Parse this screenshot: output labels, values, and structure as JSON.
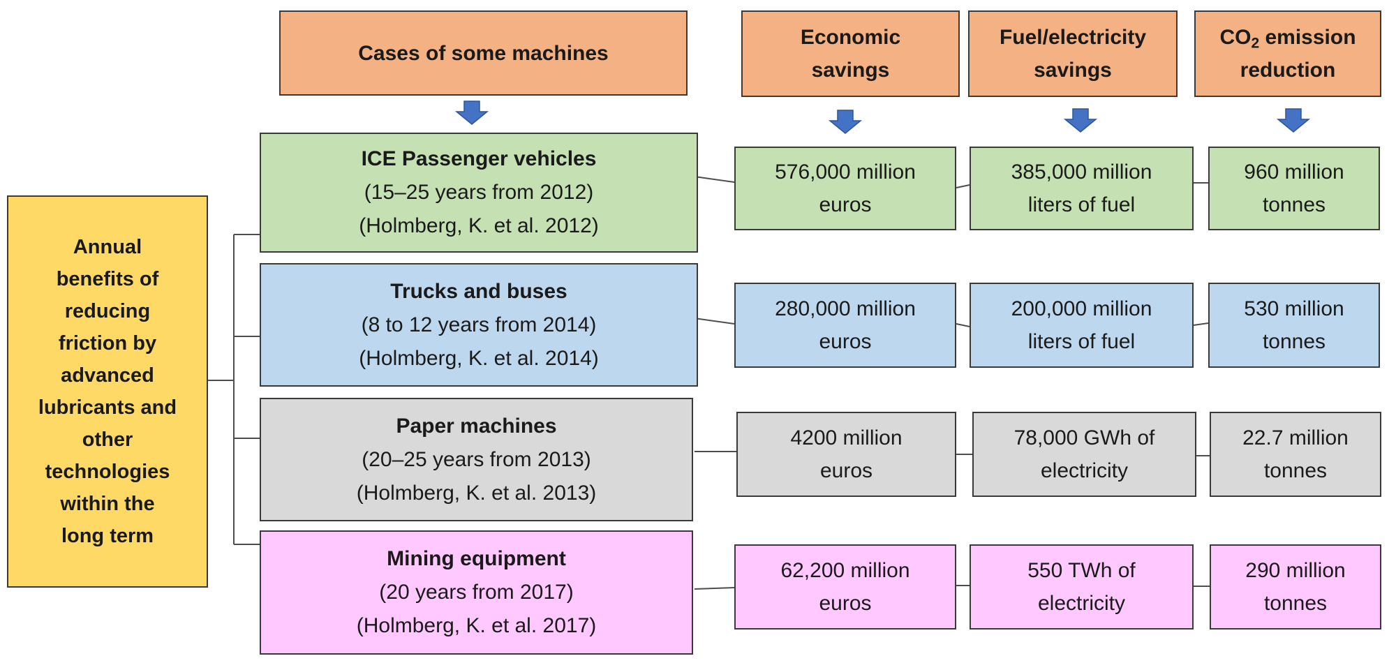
{
  "headers": {
    "cases": "Cases of some machines",
    "economic_1": "Economic",
    "economic_2": "savings",
    "fuel_1": "Fuel/electricity",
    "fuel_2": "savings",
    "co2_prefix": "CO",
    "co2_sub": "2",
    "co2_suffix": " emission",
    "co2_2": "reduction"
  },
  "left_box": [
    "Annual",
    "benefits of",
    "reducing",
    "friction by",
    "advanced",
    "lubricants and",
    "other",
    "technologies",
    "within the",
    "long term"
  ],
  "rows": [
    {
      "title": "ICE Passenger vehicles",
      "period": "(15–25 years from 2012)",
      "reference": "(Holmberg, K. et al. 2012)",
      "economic": [
        "576,000 million",
        "euros"
      ],
      "fuel": [
        "385,000 million",
        "liters of fuel"
      ],
      "co2": [
        "960 million",
        "tonnes"
      ]
    },
    {
      "title": "Trucks and buses",
      "period": "(8 to 12 years from 2014)",
      "reference": "(Holmberg, K. et al. 2014)",
      "economic": [
        "280,000 million",
        "euros"
      ],
      "fuel": [
        "200,000 million",
        "liters of fuel"
      ],
      "co2": [
        "530 million",
        "tonnes"
      ]
    },
    {
      "title": "Paper machines",
      "period": "(20–25 years from 2013)",
      "reference": "(Holmberg, K. et al. 2013)",
      "economic": [
        "4200 million",
        "euros"
      ],
      "fuel": [
        "78,000 GWh of",
        "electricity"
      ],
      "co2": [
        "22.7 million",
        "tonnes"
      ]
    },
    {
      "title": "Mining equipment",
      "period": "(20 years from 2017)",
      "reference": "(Holmberg, K. et al. 2017)",
      "economic": [
        "62,200 million",
        "euros"
      ],
      "fuel": [
        "550 TWh of",
        "electricity"
      ],
      "co2": [
        "290 million",
        "tonnes"
      ]
    }
  ],
  "colors": {
    "header": "#f4b183",
    "left": "#ffd966",
    "row_colors": [
      "#c5e0b3",
      "#bdd7ee",
      "#d9d9d9",
      "#ffc9ff"
    ],
    "arrow": "#4472c4"
  }
}
